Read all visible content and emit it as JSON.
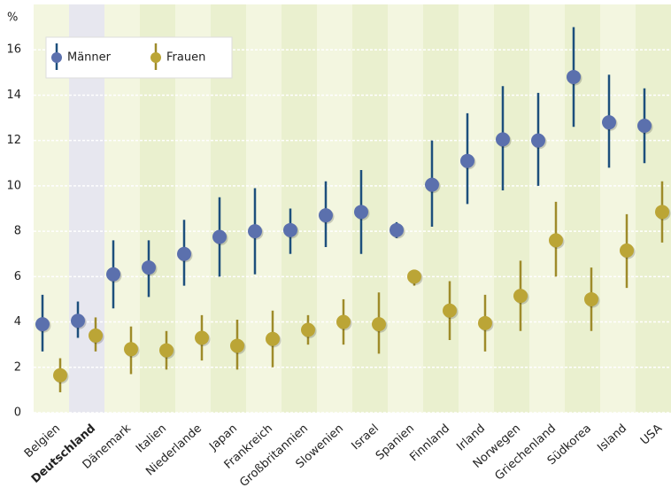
{
  "chart_data": {
    "type": "errorbar",
    "y_label": "%",
    "categories": [
      "Belgien",
      "Deutschland",
      "Dänemark",
      "Italien",
      "Niederlande",
      "Japan",
      "Frankreich",
      "Großbritannien",
      "Slowenien",
      "Israel",
      "Spanien",
      "Finnland",
      "Irland",
      "Norwegen",
      "Griechenland",
      "Südkorea",
      "Island",
      "USA"
    ],
    "highlight_index": 1,
    "series": [
      {
        "name": "Männer",
        "color": "#5b70ad",
        "error_color": "#1d4f7c",
        "values": [
          3.9,
          4.05,
          6.1,
          6.4,
          7.0,
          7.75,
          8.0,
          8.05,
          8.7,
          8.85,
          8.05,
          10.05,
          11.1,
          12.05,
          12.0,
          14.8,
          12.8,
          12.65
        ],
        "low": [
          2.7,
          3.3,
          4.6,
          5.1,
          5.6,
          6.0,
          6.1,
          7.0,
          7.3,
          7.0,
          7.7,
          8.2,
          9.2,
          9.8,
          10.0,
          12.6,
          10.8,
          11.0
        ],
        "high": [
          5.2,
          4.9,
          7.6,
          7.6,
          8.5,
          9.5,
          9.9,
          9.0,
          10.2,
          10.7,
          8.4,
          12.0,
          13.2,
          14.4,
          14.1,
          17.0,
          14.9,
          14.3
        ]
      },
      {
        "name": "Frauen",
        "color": "#bba536",
        "error_color": "#9e8b2a",
        "values": [
          1.65,
          3.4,
          2.8,
          2.75,
          3.3,
          2.95,
          3.25,
          3.65,
          4.0,
          3.9,
          6.0,
          4.5,
          3.95,
          5.15,
          7.6,
          5.0,
          7.15,
          8.85
        ],
        "low": [
          0.9,
          2.7,
          1.7,
          1.9,
          2.3,
          1.9,
          2.0,
          3.0,
          3.0,
          2.6,
          5.6,
          3.2,
          2.7,
          3.6,
          6.0,
          3.6,
          5.5,
          7.5
        ],
        "high": [
          2.4,
          4.2,
          3.8,
          3.6,
          4.3,
          4.1,
          4.5,
          4.3,
          5.0,
          5.3,
          6.3,
          5.8,
          5.2,
          6.7,
          9.3,
          6.4,
          8.75,
          10.2
        ]
      }
    ],
    "ylim": [
      0,
      18
    ],
    "yticks": [
      0,
      2,
      4,
      6,
      8,
      10,
      12,
      14,
      16
    ],
    "grid": true
  }
}
